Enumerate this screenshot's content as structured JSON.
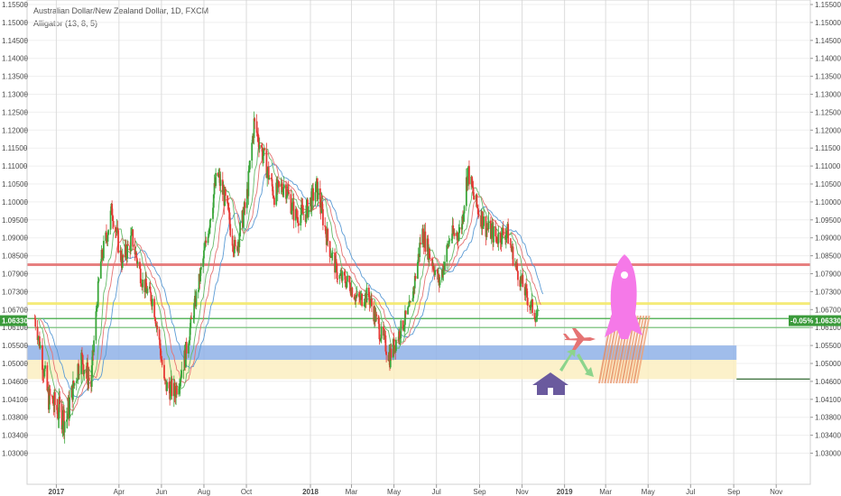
{
  "chart_data": {
    "type": "candlestick",
    "title": "Australian Dollar/New Zealand Dollar, 1D, FXCM",
    "indicator": "Alligator (13, 8, 5)",
    "y_ticks": [
      "1.15500",
      "1.15000",
      "1.14500",
      "1.14000",
      "1.13500",
      "1.13000",
      "1.12500",
      "1.12000",
      "1.11500",
      "1.11000",
      "1.10500",
      "1.10000",
      "1.09500",
      "1.09000",
      "1.08500",
      "1.07900",
      "1.07300",
      "1.06700",
      "1.06100",
      "1.05500",
      "1.05000",
      "1.04600",
      "1.04100",
      "1.03800",
      "1.03400",
      "1.03000"
    ],
    "ylim": [
      1.027,
      1.156
    ],
    "x_ticks": [
      {
        "label": "2017",
        "date": "2017-01-01",
        "bold": true
      },
      {
        "label": "Apr",
        "date": "2017-04-01",
        "bold": false
      },
      {
        "label": "Jun",
        "date": "2017-06-01",
        "bold": false
      },
      {
        "label": "Aug",
        "date": "2017-08-01",
        "bold": false
      },
      {
        "label": "Oct",
        "date": "2017-10-01",
        "bold": false
      },
      {
        "label": "2018",
        "date": "2018-01-01",
        "bold": true
      },
      {
        "label": "Mar",
        "date": "2018-03-01",
        "bold": false
      },
      {
        "label": "May",
        "date": "2018-05-01",
        "bold": false
      },
      {
        "label": "Jul",
        "date": "2018-07-01",
        "bold": false
      },
      {
        "label": "Sep",
        "date": "2018-09-01",
        "bold": false
      },
      {
        "label": "Nov",
        "date": "2018-11-01",
        "bold": false
      },
      {
        "label": "2019",
        "date": "2019-01-01",
        "bold": true
      },
      {
        "label": "Mar",
        "date": "2019-03-01",
        "bold": false
      },
      {
        "label": "May",
        "date": "2019-05-01",
        "bold": false
      },
      {
        "label": "Jul",
        "date": "2019-07-01",
        "bold": false
      },
      {
        "label": "Sep",
        "date": "2019-09-01",
        "bold": false
      },
      {
        "label": "Nov",
        "date": "2019-11-01",
        "bold": false
      }
    ],
    "xlim": [
      "2016-11-20",
      "2019-12-20"
    ],
    "last_price": "1.06330",
    "change_pct": "-0.05%",
    "price_path": [
      [
        "2016-12-01",
        1.064
      ],
      [
        "2016-12-20",
        1.042
      ],
      [
        "2017-01-15",
        1.037
      ],
      [
        "2017-02-05",
        1.052
      ],
      [
        "2017-02-20",
        1.045
      ],
      [
        "2017-03-05",
        1.082
      ],
      [
        "2017-03-22",
        1.098
      ],
      [
        "2017-04-05",
        1.083
      ],
      [
        "2017-04-20",
        1.09
      ],
      [
        "2017-05-05",
        1.076
      ],
      [
        "2017-05-20",
        1.07
      ],
      [
        "2017-06-05",
        1.045
      ],
      [
        "2017-06-20",
        1.043
      ],
      [
        "2017-07-05",
        1.052
      ],
      [
        "2017-07-20",
        1.07
      ],
      [
        "2017-08-05",
        1.09
      ],
      [
        "2017-08-20",
        1.108
      ],
      [
        "2017-09-01",
        1.1
      ],
      [
        "2017-09-15",
        1.086
      ],
      [
        "2017-10-01",
        1.1
      ],
      [
        "2017-10-12",
        1.122
      ],
      [
        "2017-10-25",
        1.113
      ],
      [
        "2017-11-10",
        1.102
      ],
      [
        "2017-11-25",
        1.105
      ],
      [
        "2017-12-10",
        1.096
      ],
      [
        "2017-12-25",
        1.097
      ],
      [
        "2018-01-10",
        1.104
      ],
      [
        "2018-01-25",
        1.09
      ],
      [
        "2018-02-10",
        1.078
      ],
      [
        "2018-02-25",
        1.076
      ],
      [
        "2018-03-10",
        1.07
      ],
      [
        "2018-03-25",
        1.072
      ],
      [
        "2018-04-10",
        1.06
      ],
      [
        "2018-04-25",
        1.052
      ],
      [
        "2018-05-10",
        1.06
      ],
      [
        "2018-05-25",
        1.068
      ],
      [
        "2018-06-10",
        1.092
      ],
      [
        "2018-06-25",
        1.083
      ],
      [
        "2018-07-05",
        1.076
      ],
      [
        "2018-07-20",
        1.09
      ],
      [
        "2018-08-05",
        1.092
      ],
      [
        "2018-08-15",
        1.109
      ],
      [
        "2018-08-25",
        1.1
      ],
      [
        "2018-09-10",
        1.093
      ],
      [
        "2018-09-25",
        1.09
      ],
      [
        "2018-10-10",
        1.092
      ],
      [
        "2018-10-25",
        1.08
      ],
      [
        "2018-11-10",
        1.07
      ],
      [
        "2018-11-25",
        1.0633
      ]
    ],
    "horizontal_levels": [
      {
        "price": 1.082,
        "color": "#e57373"
      },
      {
        "price": 1.069,
        "color": "#f5e96b"
      },
      {
        "price": 1.064,
        "color": "#4caf50"
      },
      {
        "price": 1.061,
        "color": "#81c784"
      }
    ],
    "zones": [
      {
        "from_price": 1.055,
        "to_price": 1.051,
        "color": "#8fb1e8"
      },
      {
        "from_price": 1.051,
        "to_price": 1.0465,
        "color": "#fbeec1"
      }
    ],
    "lower_right_line_price": 1.0465
  },
  "colors": {
    "up": "#26a69a",
    "green_candle": "#3aa63a",
    "red_candle": "#e53935",
    "jaw": "#5b9bd5",
    "teeth": "#e57373",
    "lips": "#66bb6a",
    "grid": "#e8e8e8",
    "axis_text": "#4a4a4a",
    "last_price_tag": "#3a9a3a"
  },
  "icons": {
    "house": "house-icon",
    "plane": "plane-icon",
    "rocket": "rocket-icon",
    "arrows": "arrow-icons"
  }
}
